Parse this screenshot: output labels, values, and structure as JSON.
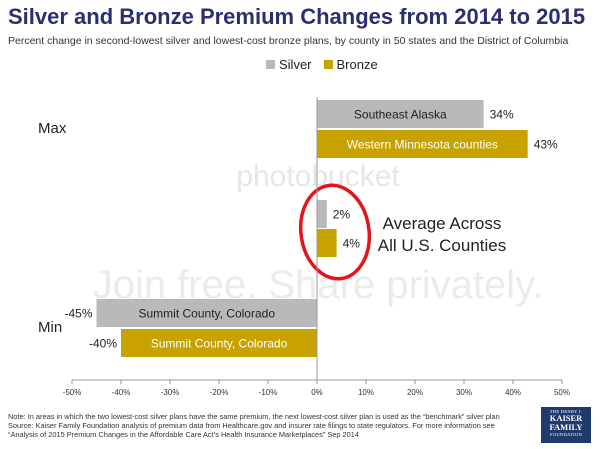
{
  "title": "Silver and Bronze Premium Changes from 2014 to 2015",
  "subtitle": "Percent change in second-lowest silver and lowest-cost bronze plans, by county in 50 states and the District of Columbia",
  "legend": [
    {
      "name": "Silver",
      "color": "#b9b9b9"
    },
    {
      "name": "Bronze",
      "color": "#c8a200"
    }
  ],
  "chart_data": {
    "type": "bar",
    "orientation": "horizontal",
    "xlim": [
      -50,
      50
    ],
    "x_ticks": [
      "-50%",
      "-40%",
      "-30%",
      "-20%",
      "-10%",
      "0%",
      "10%",
      "20%",
      "30%",
      "40%",
      "50%"
    ],
    "x_tick_values": [
      -50,
      -40,
      -30,
      -20,
      -10,
      0,
      10,
      20,
      30,
      40,
      50
    ],
    "grid": false,
    "legend_position": "top-center",
    "groups": [
      {
        "label": "Max",
        "bars": [
          {
            "series": "Silver",
            "value": 34,
            "value_label": "34%",
            "bar_label": "Southeast Alaska"
          },
          {
            "series": "Bronze",
            "value": 43,
            "value_label": "43%",
            "bar_label": "Western Minnesota counties"
          }
        ]
      },
      {
        "label": "",
        "bars": [
          {
            "series": "Silver",
            "value": 2,
            "value_label": "2%",
            "bar_label": ""
          },
          {
            "series": "Bronze",
            "value": 4,
            "value_label": "4%",
            "bar_label": ""
          }
        ]
      },
      {
        "label": "Min",
        "bars": [
          {
            "series": "Silver",
            "value": -45,
            "value_label": "-45%",
            "bar_label": "Summit County, Colorado"
          },
          {
            "series": "Bronze",
            "value": -40,
            "value_label": "-40%",
            "bar_label": "Summit County, Colorado"
          }
        ]
      }
    ],
    "annotation": [
      "Average Across",
      "All U.S. Counties"
    ]
  },
  "watermark": {
    "line1": "photobucket",
    "line2": "Join free. Share privately."
  },
  "footnote": [
    "Note: In areas in which the two lowest-cost silver plans have the same premium, the next lowest-cost silver plan is used as the “benchmark” silver plan",
    "Source: Kaiser Family Foundation analysis of premium data from Healthcare.gov and insurer rate filings to state regulators. For more information see",
    "“Analysis of 2015 Premium Changes in the Affordable Care Act’s Health Insurance Marketplaces” Sep 2014"
  ],
  "logo": {
    "line1": "THE HENRY J.",
    "line2": "KAISER",
    "line3": "FAMILY",
    "line4": "FOUNDATION"
  }
}
